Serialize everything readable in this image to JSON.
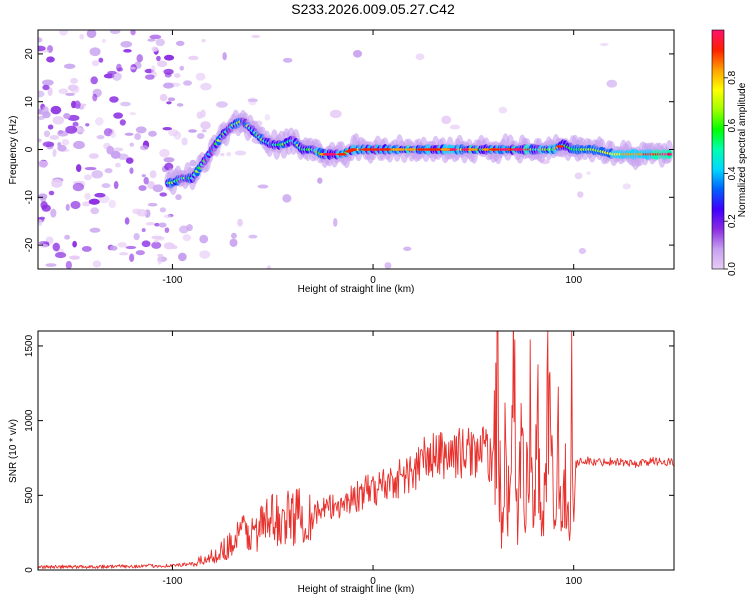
{
  "title": "S233.2026.009.05.27.C42",
  "chart_data": [
    {
      "type": "heatmap",
      "name": "spectrogram",
      "xlabel": "Height of straight line (km)",
      "ylabel": "Frequency (Hz)",
      "xlim": [
        -167,
        150
      ],
      "ylim": [
        -25,
        25
      ],
      "xticks": [
        -100,
        0,
        100
      ],
      "yticks": [
        -20,
        -10,
        0,
        10,
        20
      ],
      "ridge": {
        "x": [
          -100,
          -95,
          -90,
          -85,
          -80,
          -75,
          -70,
          -65,
          -60,
          -55,
          -50,
          -45,
          -40,
          -35,
          -30,
          -25,
          -20,
          -15,
          -10,
          -5,
          0,
          10,
          20,
          30,
          40,
          50,
          60,
          70,
          80,
          90,
          95,
          100,
          110,
          120,
          130,
          140,
          148
        ],
        "freq": [
          -7,
          -6,
          -6,
          -3,
          0,
          3,
          5,
          6,
          4,
          2,
          1,
          1,
          2,
          0,
          0,
          -1,
          -1,
          -1,
          0,
          0,
          0,
          0,
          0,
          0,
          0,
          0,
          0,
          0,
          0,
          0,
          1,
          0,
          0,
          -1,
          -1,
          -1,
          -1
        ]
      },
      "colorbar": {
        "label": "Normalized spectral amplitude",
        "range": [
          0,
          1
        ],
        "ticks": [
          "0.0",
          "0.2",
          "0.4",
          "0.6",
          "0.8"
        ],
        "colormap": [
          "#e7cdf6",
          "#c7a0ef",
          "#8a2be2",
          "#4000ff",
          "#0060ff",
          "#00d8ff",
          "#00ffb0",
          "#00ff00",
          "#a0ff00",
          "#ffff00",
          "#ffa000",
          "#ff2000",
          "#ff1070"
        ]
      }
    },
    {
      "type": "line",
      "name": "snr",
      "xlabel": "Height of straight line (km)",
      "ylabel": "SNR (10 * v/v)",
      "xlim": [
        -167,
        150
      ],
      "ylim": [
        0,
        1600
      ],
      "xticks": [
        -100,
        0,
        100
      ],
      "yticks": [
        0,
        500,
        1000,
        1500
      ],
      "color": "#e8302c",
      "x": [
        -167,
        -140,
        -120,
        -100,
        -90,
        -80,
        -70,
        -65,
        -60,
        -55,
        -50,
        -45,
        -40,
        -30,
        -20,
        -10,
        0,
        10,
        20,
        25,
        30,
        40,
        50,
        55,
        60,
        62,
        64,
        66,
        68,
        70,
        72,
        74,
        76,
        78,
        80,
        82,
        84,
        86,
        88,
        90,
        92,
        94,
        96,
        98,
        99,
        100,
        101,
        105,
        110,
        120,
        130,
        140,
        150
      ],
      "y": [
        20,
        22,
        25,
        30,
        40,
        90,
        180,
        260,
        240,
        300,
        340,
        330,
        360,
        380,
        420,
        480,
        540,
        600,
        650,
        740,
        760,
        780,
        790,
        800,
        720,
        1280,
        150,
        1000,
        250,
        1600,
        120,
        900,
        300,
        1200,
        200,
        1050,
        150,
        800,
        1300,
        250,
        1100,
        200,
        700,
        150,
        1600,
        300,
        700,
        740,
        720,
        730,
        710,
        730,
        720
      ]
    }
  ]
}
